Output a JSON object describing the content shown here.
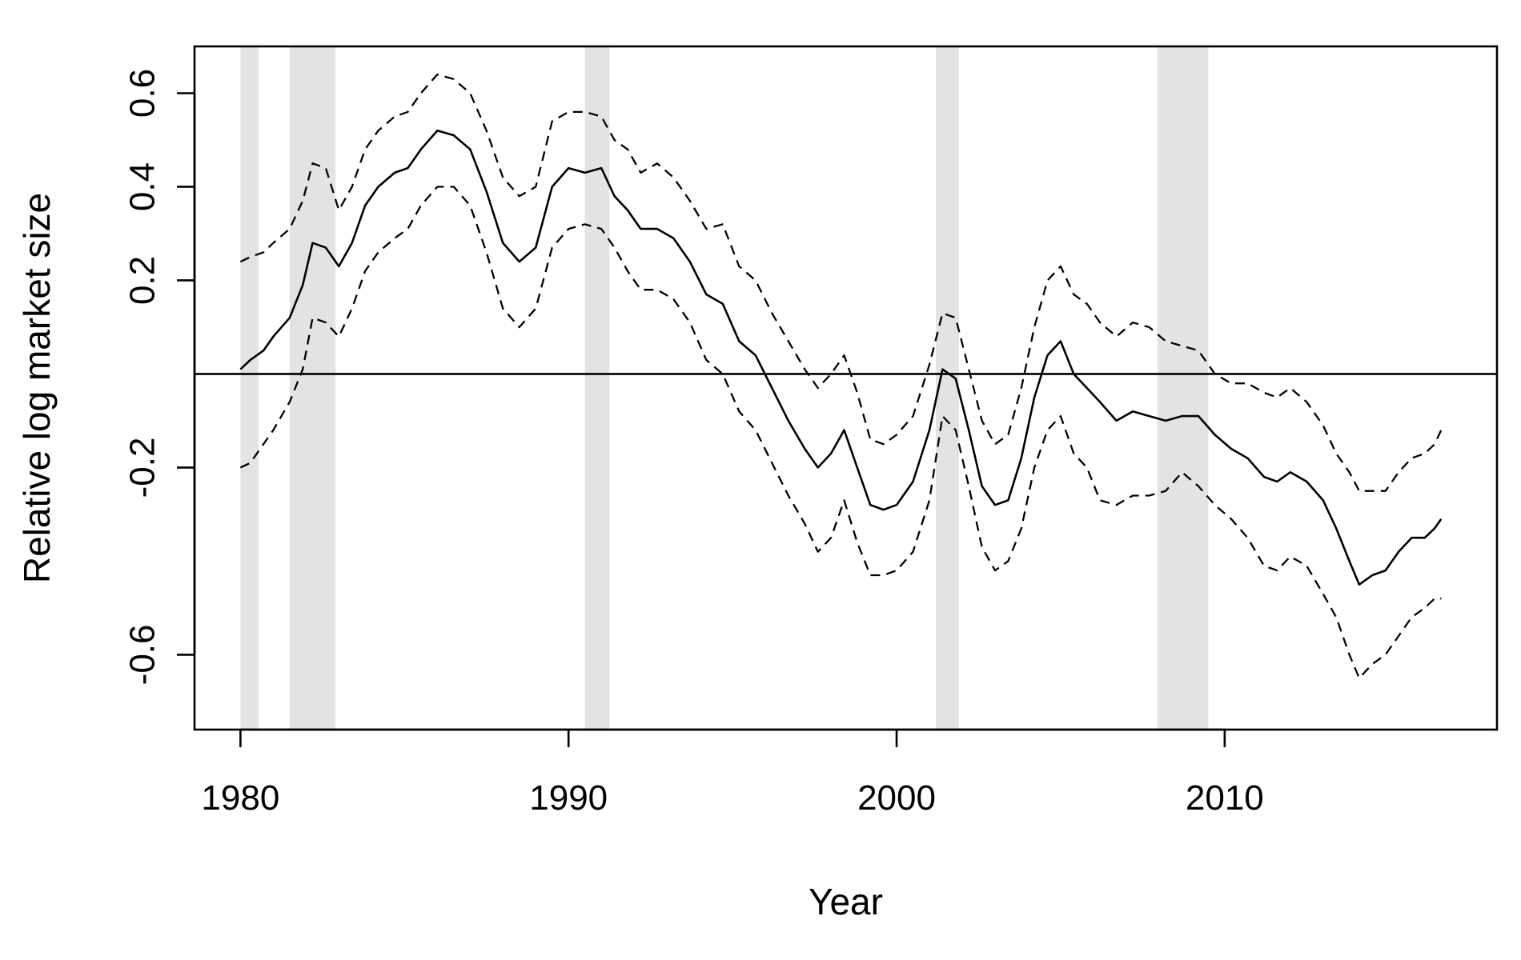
{
  "chart_data": {
    "type": "line",
    "title": "",
    "xlabel": "Year",
    "ylabel": "Relative log market size",
    "xlim": [
      1978.6,
      2018.3
    ],
    "ylim": [
      -0.76,
      0.7
    ],
    "x_ticks": [
      1980,
      1990,
      2000,
      2010
    ],
    "x_tick_labels": [
      "1980",
      "1990",
      "2000",
      "2010"
    ],
    "y_ticks": [
      -0.6,
      -0.2,
      0.2,
      0.4,
      0.6
    ],
    "y_tick_labels": [
      "-0.6",
      "-0.2",
      "0.2",
      "0.4",
      "0.6"
    ],
    "reference_line_y": 0,
    "grid": false,
    "legend": "none",
    "colors": {
      "line": "#000000",
      "recession_band": "#e3e3e3",
      "frame": "#000000"
    },
    "recession_bands": [
      [
        1980.0,
        1980.55
      ],
      [
        1981.5,
        1982.9
      ],
      [
        1990.5,
        1991.25
      ],
      [
        2001.2,
        2001.9
      ],
      [
        2007.95,
        2009.5
      ]
    ],
    "series": [
      {
        "style": "solid",
        "points": [
          [
            1980.0,
            0.01
          ],
          [
            1980.3,
            0.03
          ],
          [
            1980.7,
            0.05
          ],
          [
            1981.0,
            0.08
          ],
          [
            1981.5,
            0.12
          ],
          [
            1981.9,
            0.19
          ],
          [
            1982.2,
            0.28
          ],
          [
            1982.6,
            0.27
          ],
          [
            1983.0,
            0.23
          ],
          [
            1983.4,
            0.28
          ],
          [
            1983.8,
            0.36
          ],
          [
            1984.2,
            0.4
          ],
          [
            1984.7,
            0.43
          ],
          [
            1985.1,
            0.44
          ],
          [
            1985.5,
            0.48
          ],
          [
            1986.0,
            0.52
          ],
          [
            1986.5,
            0.51
          ],
          [
            1987.0,
            0.48
          ],
          [
            1987.5,
            0.39
          ],
          [
            1988.0,
            0.28
          ],
          [
            1988.5,
            0.24
          ],
          [
            1989.0,
            0.27
          ],
          [
            1989.5,
            0.4
          ],
          [
            1990.0,
            0.44
          ],
          [
            1990.5,
            0.43
          ],
          [
            1991.0,
            0.44
          ],
          [
            1991.4,
            0.38
          ],
          [
            1991.8,
            0.35
          ],
          [
            1992.2,
            0.31
          ],
          [
            1992.7,
            0.31
          ],
          [
            1993.2,
            0.29
          ],
          [
            1993.7,
            0.24
          ],
          [
            1994.2,
            0.17
          ],
          [
            1994.7,
            0.15
          ],
          [
            1995.2,
            0.07
          ],
          [
            1995.7,
            0.04
          ],
          [
            1996.2,
            -0.03
          ],
          [
            1996.7,
            -0.1
          ],
          [
            1997.2,
            -0.16
          ],
          [
            1997.6,
            -0.2
          ],
          [
            1998.0,
            -0.17
          ],
          [
            1998.4,
            -0.12
          ],
          [
            1998.8,
            -0.2
          ],
          [
            1999.2,
            -0.28
          ],
          [
            1999.6,
            -0.29
          ],
          [
            2000.0,
            -0.28
          ],
          [
            2000.5,
            -0.23
          ],
          [
            2001.0,
            -0.12
          ],
          [
            2001.4,
            0.01
          ],
          [
            2001.8,
            -0.01
          ],
          [
            2002.2,
            -0.12
          ],
          [
            2002.6,
            -0.24
          ],
          [
            2003.0,
            -0.28
          ],
          [
            2003.4,
            -0.27
          ],
          [
            2003.8,
            -0.18
          ],
          [
            2004.2,
            -0.05
          ],
          [
            2004.6,
            0.04
          ],
          [
            2005.0,
            0.07
          ],
          [
            2005.4,
            0.0
          ],
          [
            2005.8,
            -0.03
          ],
          [
            2006.2,
            -0.06
          ],
          [
            2006.7,
            -0.1
          ],
          [
            2007.2,
            -0.08
          ],
          [
            2007.7,
            -0.09
          ],
          [
            2008.2,
            -0.1
          ],
          [
            2008.7,
            -0.09
          ],
          [
            2009.2,
            -0.09
          ],
          [
            2009.7,
            -0.13
          ],
          [
            2010.2,
            -0.16
          ],
          [
            2010.7,
            -0.18
          ],
          [
            2011.2,
            -0.22
          ],
          [
            2011.6,
            -0.23
          ],
          [
            2012.0,
            -0.21
          ],
          [
            2012.5,
            -0.23
          ],
          [
            2013.0,
            -0.27
          ],
          [
            2013.4,
            -0.33
          ],
          [
            2013.8,
            -0.4
          ],
          [
            2014.1,
            -0.45
          ],
          [
            2014.5,
            -0.43
          ],
          [
            2014.9,
            -0.42
          ],
          [
            2015.3,
            -0.38
          ],
          [
            2015.7,
            -0.35
          ],
          [
            2016.1,
            -0.35
          ],
          [
            2016.4,
            -0.33
          ],
          [
            2016.6,
            -0.31
          ]
        ]
      },
      {
        "style": "dashed",
        "points": [
          [
            1980.0,
            0.24
          ],
          [
            1980.3,
            0.25
          ],
          [
            1980.7,
            0.26
          ],
          [
            1981.0,
            0.28
          ],
          [
            1981.5,
            0.31
          ],
          [
            1981.9,
            0.37
          ],
          [
            1982.2,
            0.45
          ],
          [
            1982.6,
            0.44
          ],
          [
            1983.0,
            0.35
          ],
          [
            1983.4,
            0.4
          ],
          [
            1983.8,
            0.48
          ],
          [
            1984.2,
            0.52
          ],
          [
            1984.7,
            0.55
          ],
          [
            1985.1,
            0.56
          ],
          [
            1985.5,
            0.6
          ],
          [
            1986.0,
            0.64
          ],
          [
            1986.5,
            0.63
          ],
          [
            1987.0,
            0.6
          ],
          [
            1987.5,
            0.52
          ],
          [
            1988.0,
            0.42
          ],
          [
            1988.5,
            0.38
          ],
          [
            1989.0,
            0.4
          ],
          [
            1989.5,
            0.54
          ],
          [
            1990.0,
            0.56
          ],
          [
            1990.5,
            0.56
          ],
          [
            1991.0,
            0.55
          ],
          [
            1991.4,
            0.5
          ],
          [
            1991.8,
            0.48
          ],
          [
            1992.2,
            0.43
          ],
          [
            1992.7,
            0.45
          ],
          [
            1993.2,
            0.42
          ],
          [
            1993.7,
            0.37
          ],
          [
            1994.2,
            0.31
          ],
          [
            1994.7,
            0.32
          ],
          [
            1995.2,
            0.23
          ],
          [
            1995.7,
            0.2
          ],
          [
            1996.2,
            0.13
          ],
          [
            1996.7,
            0.07
          ],
          [
            1997.2,
            0.01
          ],
          [
            1997.6,
            -0.03
          ],
          [
            1998.0,
            0.0
          ],
          [
            1998.4,
            0.04
          ],
          [
            1998.8,
            -0.04
          ],
          [
            1999.2,
            -0.14
          ],
          [
            1999.6,
            -0.15
          ],
          [
            2000.0,
            -0.13
          ],
          [
            2000.5,
            -0.09
          ],
          [
            2001.0,
            0.02
          ],
          [
            2001.4,
            0.13
          ],
          [
            2001.8,
            0.12
          ],
          [
            2002.2,
            0.01
          ],
          [
            2002.6,
            -0.1
          ],
          [
            2003.0,
            -0.15
          ],
          [
            2003.4,
            -0.13
          ],
          [
            2003.8,
            -0.03
          ],
          [
            2004.2,
            0.1
          ],
          [
            2004.6,
            0.2
          ],
          [
            2005.0,
            0.23
          ],
          [
            2005.4,
            0.17
          ],
          [
            2005.8,
            0.15
          ],
          [
            2006.2,
            0.11
          ],
          [
            2006.7,
            0.08
          ],
          [
            2007.2,
            0.11
          ],
          [
            2007.7,
            0.1
          ],
          [
            2008.2,
            0.07
          ],
          [
            2008.7,
            0.06
          ],
          [
            2009.2,
            0.05
          ],
          [
            2009.7,
            0.0
          ],
          [
            2010.2,
            -0.02
          ],
          [
            2010.7,
            -0.02
          ],
          [
            2011.2,
            -0.04
          ],
          [
            2011.6,
            -0.05
          ],
          [
            2012.0,
            -0.03
          ],
          [
            2012.5,
            -0.06
          ],
          [
            2013.0,
            -0.11
          ],
          [
            2013.4,
            -0.17
          ],
          [
            2013.8,
            -0.21
          ],
          [
            2014.1,
            -0.25
          ],
          [
            2014.5,
            -0.25
          ],
          [
            2014.9,
            -0.25
          ],
          [
            2015.3,
            -0.21
          ],
          [
            2015.7,
            -0.18
          ],
          [
            2016.1,
            -0.17
          ],
          [
            2016.4,
            -0.15
          ],
          [
            2016.6,
            -0.12
          ]
        ]
      },
      {
        "style": "dashed",
        "points": [
          [
            1980.0,
            -0.2
          ],
          [
            1980.3,
            -0.19
          ],
          [
            1980.7,
            -0.15
          ],
          [
            1981.0,
            -0.12
          ],
          [
            1981.5,
            -0.06
          ],
          [
            1981.9,
            0.01
          ],
          [
            1982.2,
            0.12
          ],
          [
            1982.6,
            0.11
          ],
          [
            1983.0,
            0.08
          ],
          [
            1983.4,
            0.14
          ],
          [
            1983.8,
            0.22
          ],
          [
            1984.2,
            0.26
          ],
          [
            1984.7,
            0.29
          ],
          [
            1985.1,
            0.31
          ],
          [
            1985.5,
            0.36
          ],
          [
            1986.0,
            0.4
          ],
          [
            1986.5,
            0.4
          ],
          [
            1987.0,
            0.36
          ],
          [
            1987.5,
            0.26
          ],
          [
            1988.0,
            0.14
          ],
          [
            1988.5,
            0.1
          ],
          [
            1989.0,
            0.14
          ],
          [
            1989.5,
            0.27
          ],
          [
            1990.0,
            0.31
          ],
          [
            1990.5,
            0.32
          ],
          [
            1991.0,
            0.31
          ],
          [
            1991.4,
            0.27
          ],
          [
            1991.8,
            0.22
          ],
          [
            1992.2,
            0.18
          ],
          [
            1992.7,
            0.18
          ],
          [
            1993.2,
            0.16
          ],
          [
            1993.7,
            0.11
          ],
          [
            1994.2,
            0.03
          ],
          [
            1994.7,
            0.0
          ],
          [
            1995.2,
            -0.08
          ],
          [
            1995.7,
            -0.12
          ],
          [
            1996.2,
            -0.19
          ],
          [
            1996.7,
            -0.26
          ],
          [
            1997.2,
            -0.32
          ],
          [
            1997.6,
            -0.38
          ],
          [
            1998.0,
            -0.35
          ],
          [
            1998.4,
            -0.27
          ],
          [
            1998.8,
            -0.36
          ],
          [
            1999.2,
            -0.43
          ],
          [
            1999.6,
            -0.43
          ],
          [
            2000.0,
            -0.42
          ],
          [
            2000.5,
            -0.38
          ],
          [
            2001.0,
            -0.27
          ],
          [
            2001.4,
            -0.09
          ],
          [
            2001.8,
            -0.12
          ],
          [
            2002.2,
            -0.24
          ],
          [
            2002.6,
            -0.37
          ],
          [
            2003.0,
            -0.42
          ],
          [
            2003.4,
            -0.4
          ],
          [
            2003.8,
            -0.33
          ],
          [
            2004.2,
            -0.2
          ],
          [
            2004.6,
            -0.12
          ],
          [
            2005.0,
            -0.09
          ],
          [
            2005.4,
            -0.17
          ],
          [
            2005.8,
            -0.2
          ],
          [
            2006.2,
            -0.27
          ],
          [
            2006.7,
            -0.28
          ],
          [
            2007.2,
            -0.26
          ],
          [
            2007.7,
            -0.26
          ],
          [
            2008.2,
            -0.25
          ],
          [
            2008.7,
            -0.21
          ],
          [
            2009.2,
            -0.24
          ],
          [
            2009.7,
            -0.28
          ],
          [
            2010.2,
            -0.31
          ],
          [
            2010.7,
            -0.35
          ],
          [
            2011.2,
            -0.41
          ],
          [
            2011.6,
            -0.42
          ],
          [
            2012.0,
            -0.39
          ],
          [
            2012.5,
            -0.41
          ],
          [
            2013.0,
            -0.47
          ],
          [
            2013.4,
            -0.52
          ],
          [
            2013.8,
            -0.6
          ],
          [
            2014.1,
            -0.65
          ],
          [
            2014.5,
            -0.62
          ],
          [
            2014.9,
            -0.6
          ],
          [
            2015.3,
            -0.56
          ],
          [
            2015.7,
            -0.52
          ],
          [
            2016.1,
            -0.5
          ],
          [
            2016.4,
            -0.48
          ],
          [
            2016.6,
            -0.48
          ]
        ]
      }
    ]
  }
}
